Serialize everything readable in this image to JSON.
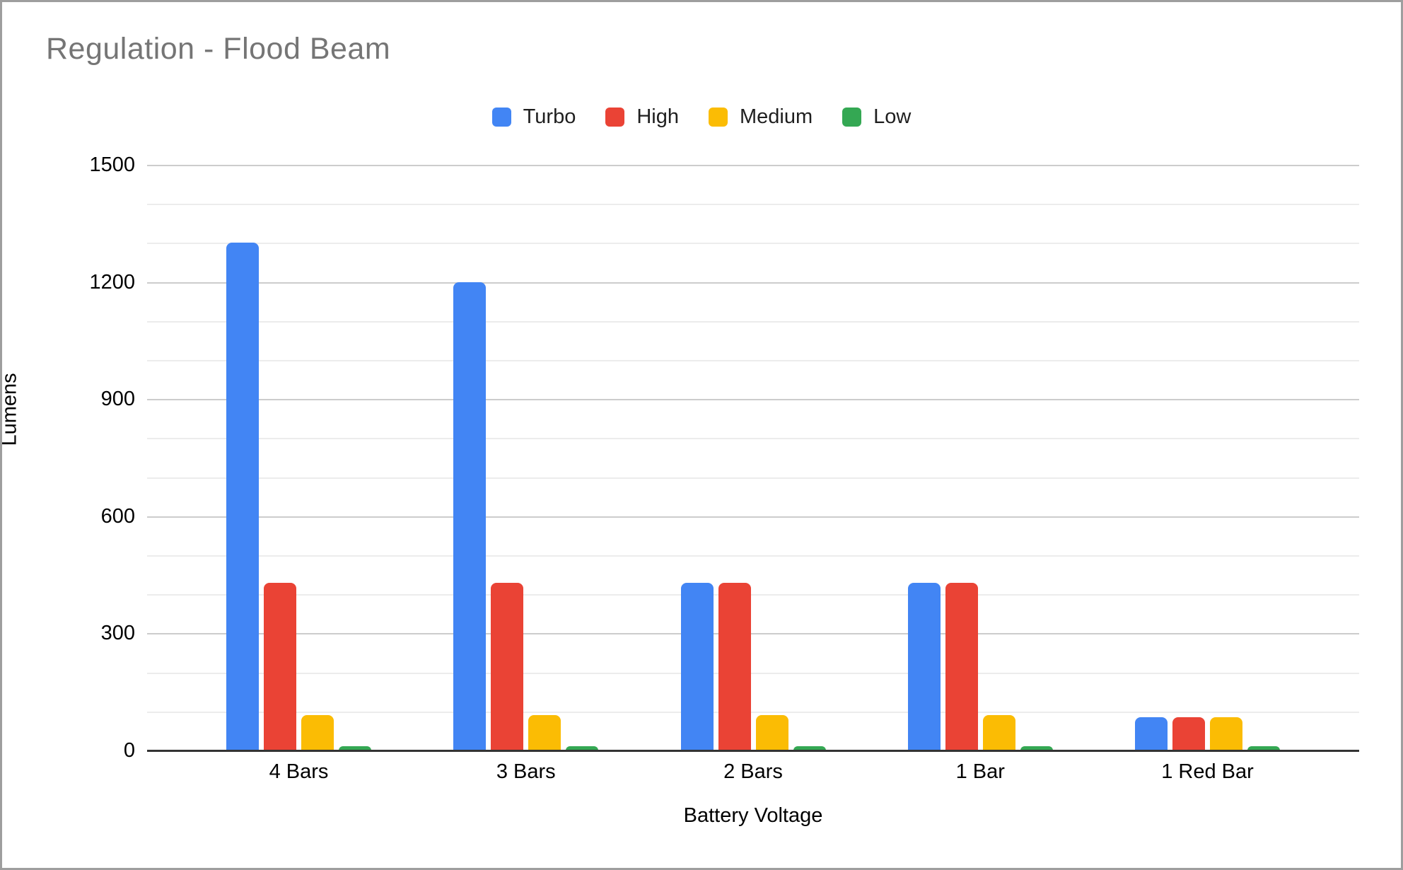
{
  "window": {
    "background": "#ffffff",
    "border_color": "#9e9e9e"
  },
  "chart": {
    "title_color": "#757575",
    "major_gridline_color": "#cccccc",
    "minor_gridline_color": "#ececec",
    "axis_line_color": "#333333",
    "text_color": "#000000"
  },
  "chart_data": {
    "type": "bar",
    "title": "Regulation - Flood Beam",
    "xlabel": "Battery Voltage",
    "ylabel": "Lumens",
    "categories": [
      "4 Bars",
      "3 Bars",
      "2 Bars",
      "1 Bar",
      "1 Red Bar"
    ],
    "series": [
      {
        "name": "Turbo",
        "color": "#4285F4",
        "values": [
          1300,
          1200,
          430,
          430,
          85
        ]
      },
      {
        "name": "High",
        "color": "#EA4335",
        "values": [
          430,
          430,
          430,
          430,
          85
        ]
      },
      {
        "name": "Medium",
        "color": "#FBBC04",
        "values": [
          90,
          90,
          90,
          90,
          85
        ]
      },
      {
        "name": "Low",
        "color": "#34A853",
        "values": [
          10,
          10,
          10,
          10,
          10
        ]
      }
    ],
    "ylim": [
      0,
      1500
    ],
    "yticks": [
      0,
      300,
      600,
      900,
      1200,
      1500
    ],
    "minor_grid_step": 100,
    "grid": true,
    "legend_position": "top"
  }
}
